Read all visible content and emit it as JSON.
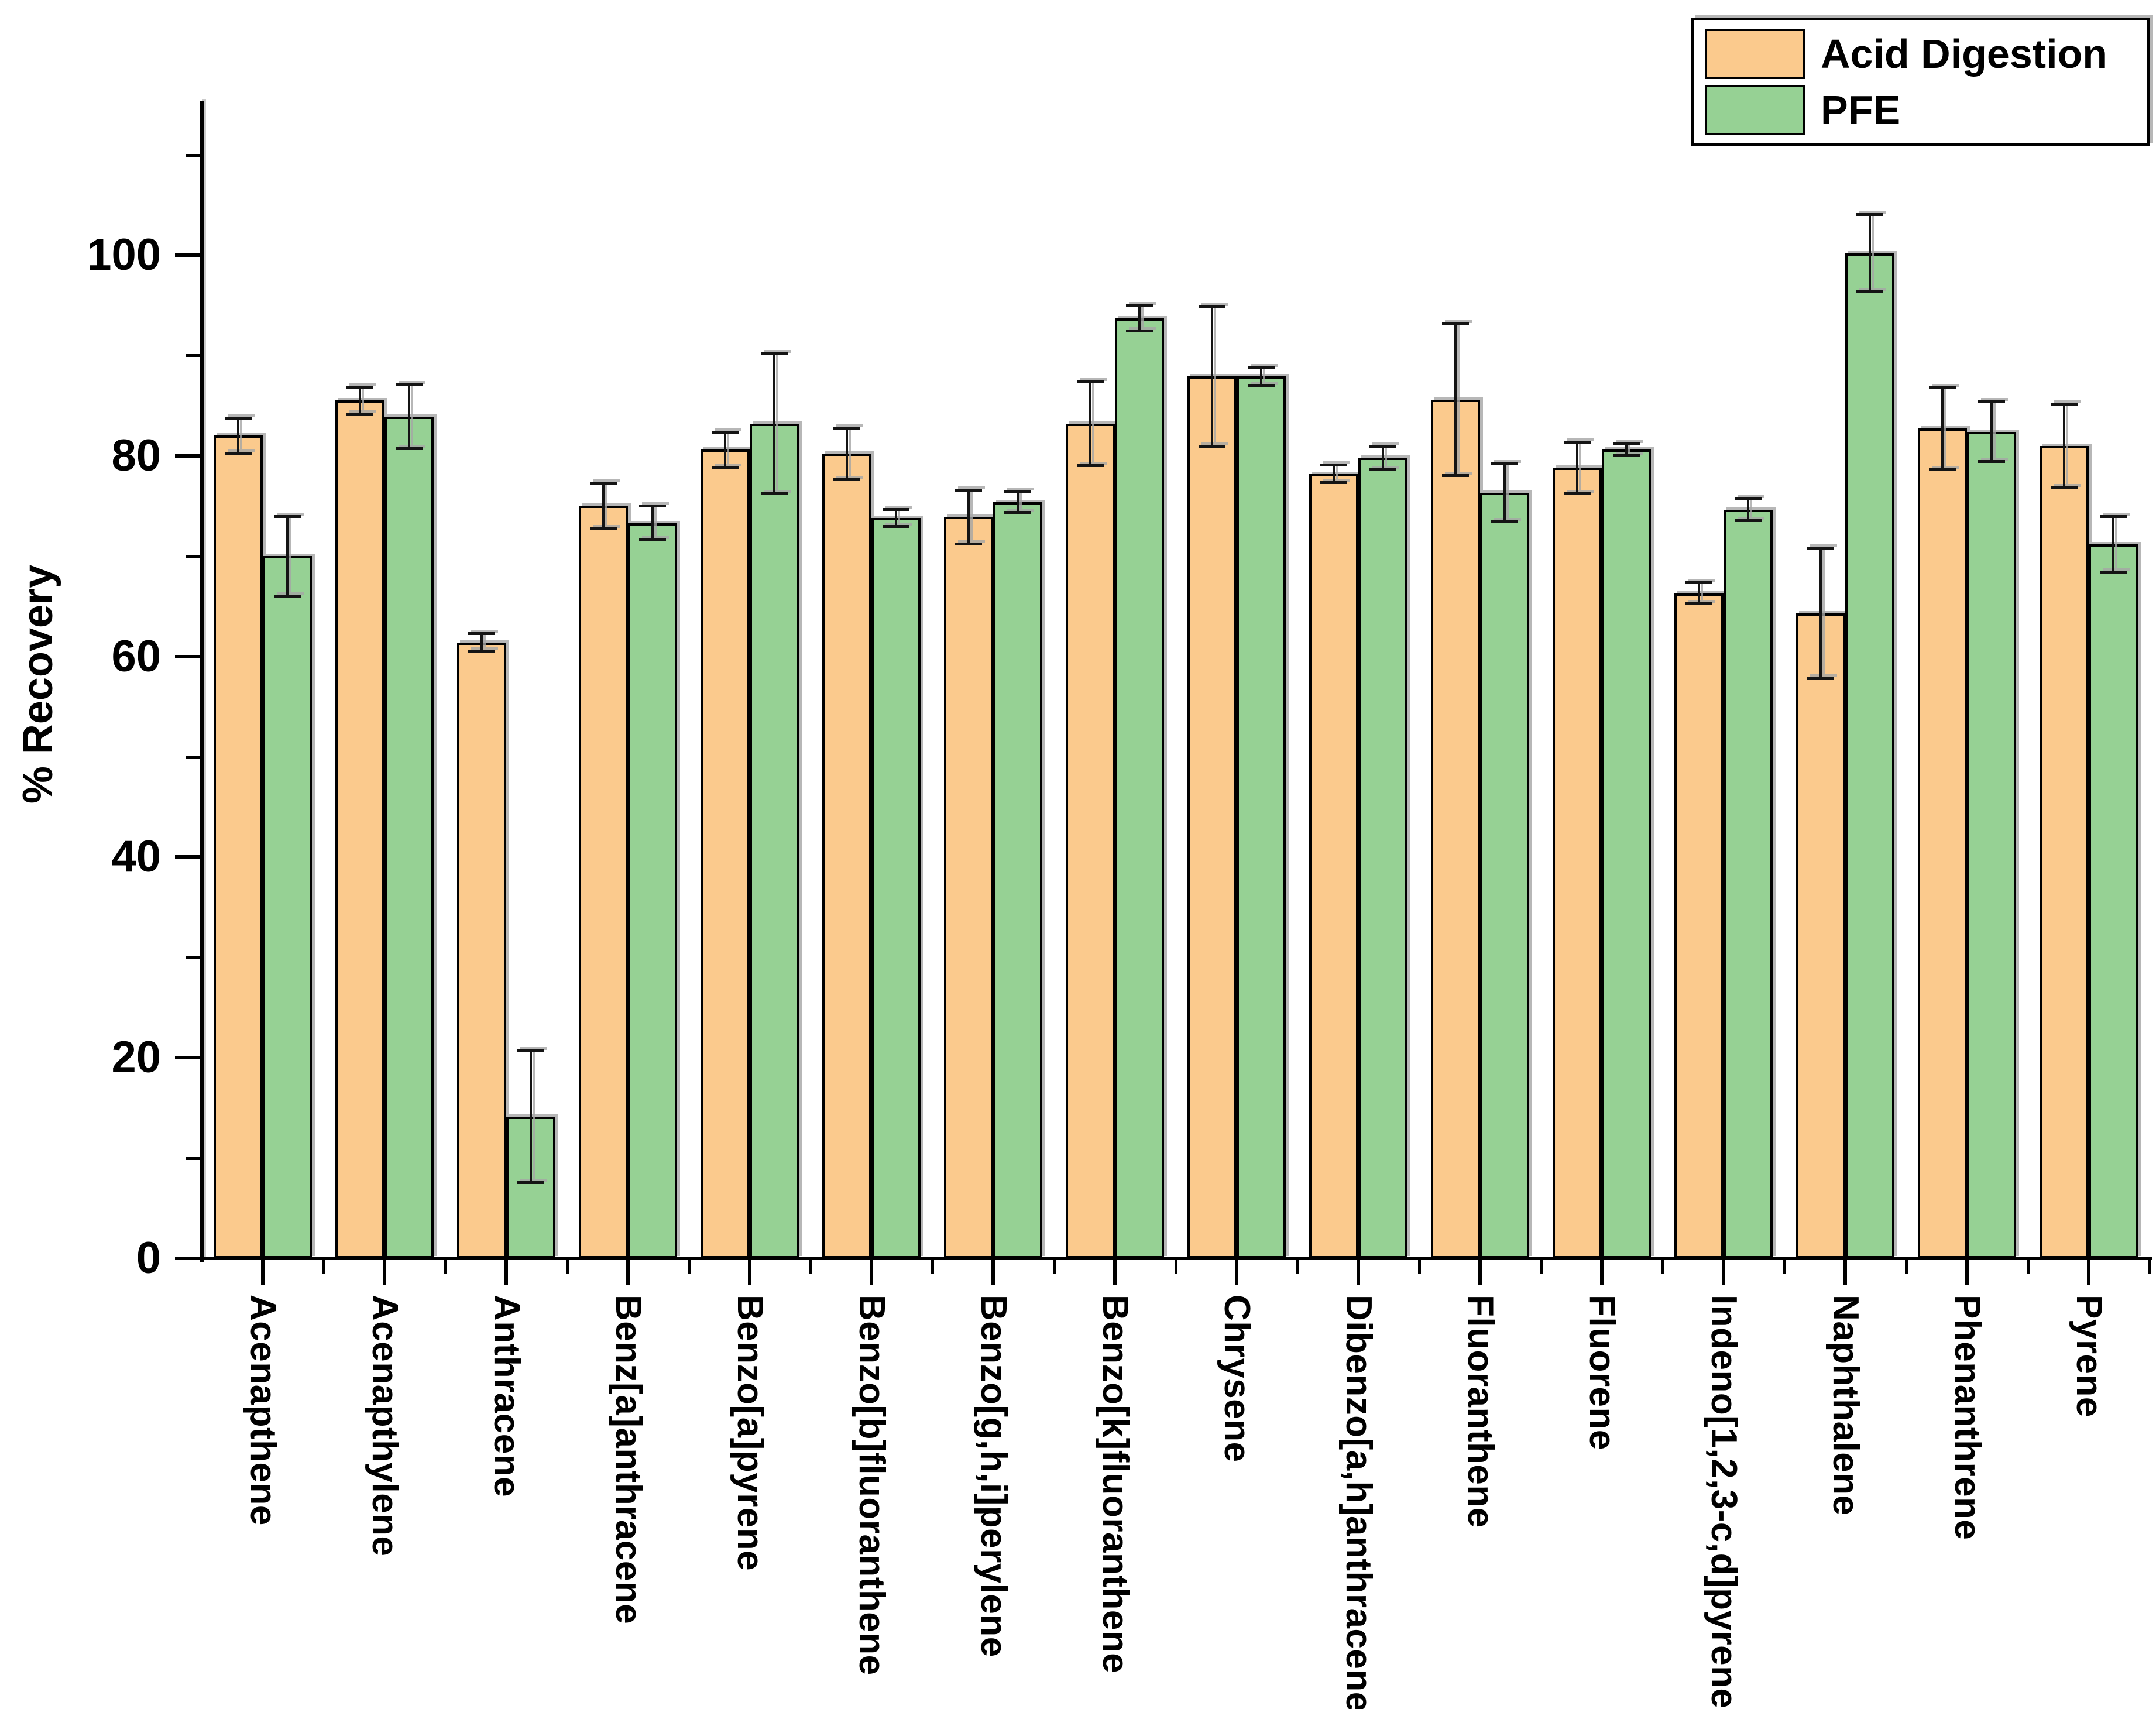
{
  "legend": {
    "position": "top-right",
    "items": [
      {
        "label": "Acid Digestion",
        "color": "#FBCA8D"
      },
      {
        "label": "PFE",
        "color": "#96D194"
      }
    ]
  },
  "chart_data": {
    "type": "bar",
    "title": "",
    "xlabel": "",
    "ylabel": "% Recovery",
    "ylim": [
      0,
      115.4
    ],
    "grid": false,
    "legend_position": "top-right",
    "y_major_ticks": [
      0,
      20,
      40,
      60,
      80,
      100
    ],
    "y_minor_ticks": [
      10,
      30,
      50,
      70,
      90,
      110
    ],
    "bar_outline_color": "#000000",
    "error_bar_color": "#141414",
    "categories": [
      "Acenapthene",
      "Acenapthylene",
      "Anthracene",
      "Benz[a]anthracene",
      "Benzo[a]pyrene",
      "Benzo[b]fluoranthene",
      "Benzo[g,h,i]perylene",
      "Benzo[k]fluoranthene",
      "Chrysene",
      "Dibenzo[a,h]anthracene",
      "Fluoranthene",
      "Fluorene",
      "Indeno[1,2,3-c,d]pyrene",
      "Naphthalene",
      "Phenanthrene",
      "Pyrene"
    ],
    "series": [
      {
        "name": "Acid Digestion",
        "color": "#FBCA8D",
        "values": [
          82.0,
          85.5,
          61.4,
          75.0,
          80.6,
          80.2,
          73.9,
          83.2,
          87.9,
          78.2,
          85.6,
          78.8,
          66.3,
          64.3,
          82.7,
          81.0
        ],
        "errors": [
          1.8,
          1.4,
          0.9,
          2.3,
          1.8,
          2.6,
          2.7,
          4.2,
          7.0,
          0.9,
          7.6,
          2.6,
          1.1,
          6.5,
          4.1,
          4.2
        ]
      },
      {
        "name": "PFE",
        "color": "#96D194",
        "values": [
          70.0,
          83.9,
          14.1,
          73.3,
          83.2,
          73.8,
          75.4,
          93.7,
          87.9,
          79.8,
          76.3,
          80.6,
          74.6,
          100.2,
          82.4,
          71.2
        ],
        "errors": [
          4.0,
          3.2,
          6.6,
          1.7,
          7.0,
          0.9,
          1.1,
          1.3,
          0.9,
          1.2,
          2.9,
          0.6,
          1.1,
          3.9,
          3.0,
          2.8
        ]
      }
    ]
  }
}
